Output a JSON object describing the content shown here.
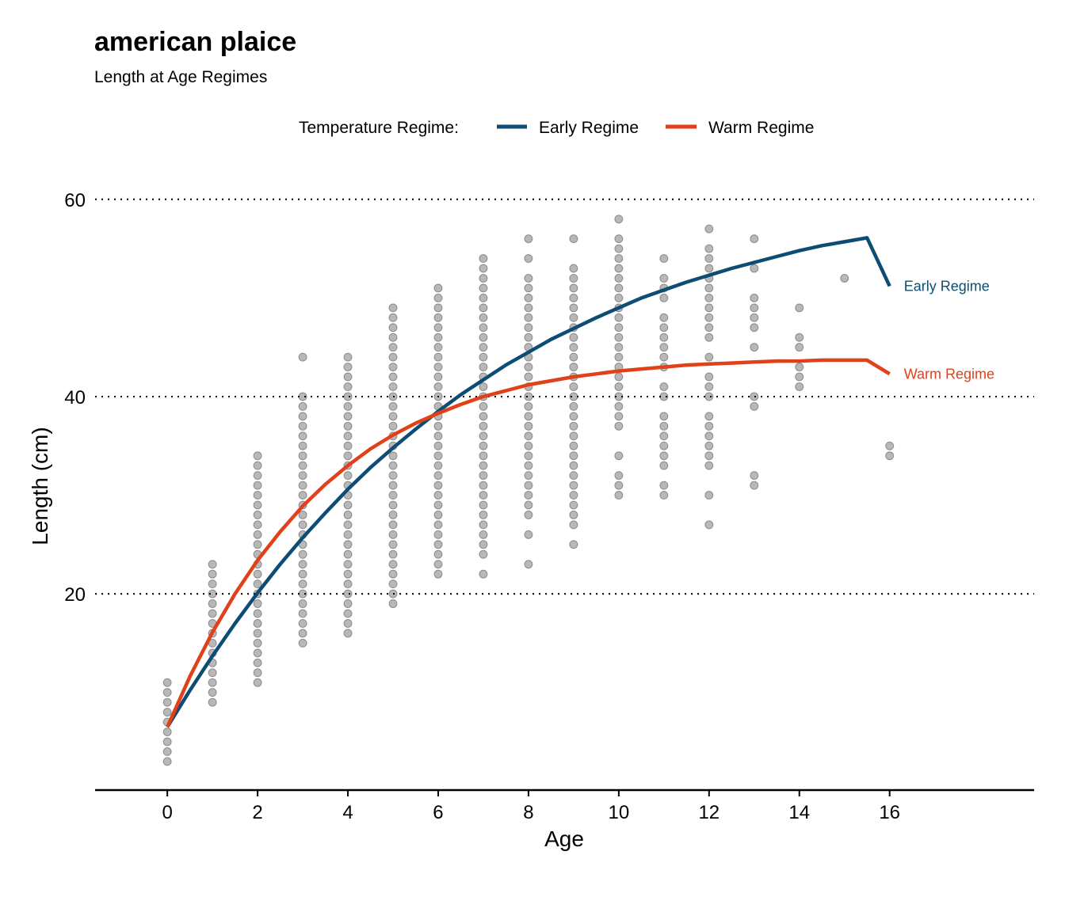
{
  "chart_data": {
    "type": "scatter",
    "title": "american plaice",
    "subtitle": "Length at Age Regimes",
    "xlabel": "Age",
    "ylabel": "Length (cm)",
    "xlim": [
      -1.6,
      19.2
    ],
    "ylim": [
      0.1,
      64.8
    ],
    "x_ticks": [
      0,
      2,
      4,
      6,
      8,
      10,
      12,
      14,
      16
    ],
    "y_ticks": [
      20,
      40,
      60
    ],
    "grid": "horizontal dotted",
    "legend": {
      "title": "Temperature Regime:",
      "placement": "top",
      "entries": [
        "Early Regime",
        "Warm Regime"
      ]
    },
    "series": [
      {
        "name": "Early Regime",
        "color": "#0d4d73",
        "end_label": "Early Regime",
        "x": [
          0,
          0.5,
          1,
          1.5,
          2,
          2.5,
          3,
          3.5,
          4,
          4.5,
          5,
          5.5,
          6,
          6.5,
          7,
          7.5,
          8,
          8.5,
          9,
          9.5,
          10,
          10.5,
          11,
          11.5,
          12,
          12.5,
          13,
          13.5,
          14,
          14.5,
          15,
          15.5,
          16
        ],
        "y": [
          6.5,
          10.2,
          13.7,
          17.0,
          20.1,
          23.0,
          25.7,
          28.2,
          30.6,
          32.8,
          34.8,
          36.7,
          38.5,
          40.2,
          41.7,
          43.2,
          44.5,
          45.8,
          46.9,
          48.0,
          49.0,
          50.0,
          50.8,
          51.6,
          52.3,
          53.0,
          53.6,
          54.2,
          54.8,
          55.3,
          55.7,
          56.1,
          51.2
        ]
      },
      {
        "name": "Warm Regime",
        "color": "#e0401a",
        "end_label": "Warm Regime",
        "x": [
          0,
          0.5,
          1,
          1.5,
          2,
          2.5,
          3,
          3.5,
          4,
          4.5,
          5,
          5.5,
          6,
          6.5,
          7,
          7.5,
          8,
          8.5,
          9,
          9.5,
          10,
          10.5,
          11,
          11.5,
          12,
          12.5,
          13,
          13.5,
          14,
          14.5,
          15,
          15.5,
          16
        ],
        "y": [
          6.5,
          11.6,
          16.1,
          20.0,
          23.4,
          26.3,
          28.9,
          31.1,
          33.0,
          34.7,
          36.1,
          37.3,
          38.3,
          39.2,
          40.0,
          40.6,
          41.2,
          41.6,
          42.0,
          42.3,
          42.6,
          42.8,
          43.0,
          43.2,
          43.3,
          43.4,
          43.5,
          43.6,
          43.6,
          43.7,
          43.7,
          43.7,
          42.3
        ]
      }
    ],
    "points": {
      "color": "#000000",
      "description": "",
      "by_age": [
        {
          "age": 0,
          "lengths": [
            3,
            4,
            5,
            6,
            7,
            8,
            9,
            10,
            11
          ]
        },
        {
          "age": 1,
          "lengths": [
            9,
            10,
            11,
            12,
            13,
            14,
            15,
            16,
            17,
            18,
            19,
            20,
            21,
            22,
            23
          ]
        },
        {
          "age": 2,
          "lengths": [
            11,
            12,
            13,
            14,
            15,
            16,
            17,
            18,
            19,
            20,
            21,
            22,
            23,
            24,
            25,
            26,
            27,
            28,
            29,
            30,
            31,
            32,
            33,
            34
          ]
        },
        {
          "age": 3,
          "lengths": [
            15,
            16,
            17,
            18,
            19,
            20,
            21,
            22,
            23,
            24,
            25,
            26,
            27,
            28,
            29,
            30,
            31,
            32,
            33,
            34,
            35,
            36,
            37,
            38,
            39,
            40,
            44
          ]
        },
        {
          "age": 4,
          "lengths": [
            16,
            17,
            18,
            19,
            20,
            21,
            22,
            23,
            24,
            25,
            26,
            27,
            28,
            29,
            30,
            31,
            32,
            33,
            34,
            35,
            36,
            37,
            38,
            39,
            40,
            41,
            42,
            43,
            44
          ]
        },
        {
          "age": 5,
          "lengths": [
            19,
            20,
            21,
            22,
            23,
            24,
            25,
            26,
            27,
            28,
            29,
            30,
            31,
            32,
            33,
            34,
            35,
            36,
            37,
            38,
            39,
            40,
            41,
            42,
            43,
            44,
            45,
            46,
            47,
            48,
            49
          ]
        },
        {
          "age": 6,
          "lengths": [
            22,
            23,
            24,
            25,
            26,
            27,
            28,
            29,
            30,
            31,
            32,
            33,
            34,
            35,
            36,
            37,
            38,
            39,
            40,
            41,
            42,
            43,
            44,
            45,
            46,
            47,
            48,
            49,
            50,
            51
          ]
        },
        {
          "age": 7,
          "lengths": [
            22,
            24,
            25,
            26,
            27,
            28,
            29,
            30,
            31,
            32,
            33,
            34,
            35,
            36,
            37,
            38,
            39,
            40,
            41,
            42,
            43,
            44,
            45,
            46,
            47,
            48,
            49,
            50,
            51,
            52,
            53,
            54
          ]
        },
        {
          "age": 8,
          "lengths": [
            23,
            26,
            28,
            29,
            30,
            31,
            32,
            33,
            34,
            35,
            36,
            37,
            38,
            39,
            40,
            41,
            42,
            43,
            44,
            45,
            46,
            47,
            48,
            49,
            50,
            51,
            52,
            54,
            56
          ]
        },
        {
          "age": 9,
          "lengths": [
            25,
            27,
            28,
            29,
            30,
            31,
            32,
            33,
            34,
            35,
            36,
            37,
            38,
            39,
            40,
            41,
            42,
            43,
            44,
            45,
            46,
            47,
            48,
            49,
            50,
            51,
            52,
            53,
            56
          ]
        },
        {
          "age": 10,
          "lengths": [
            30,
            31,
            32,
            34,
            37,
            38,
            39,
            40,
            41,
            42,
            43,
            44,
            45,
            46,
            47,
            48,
            49,
            50,
            51,
            52,
            53,
            54,
            55,
            56,
            58
          ]
        },
        {
          "age": 11,
          "lengths": [
            30,
            31,
            33,
            34,
            35,
            36,
            37,
            38,
            40,
            41,
            43,
            44,
            45,
            46,
            47,
            48,
            50,
            51,
            52,
            54
          ]
        },
        {
          "age": 12,
          "lengths": [
            27,
            30,
            33,
            34,
            35,
            36,
            37,
            38,
            40,
            41,
            42,
            44,
            46,
            47,
            48,
            49,
            50,
            51,
            52,
            53,
            54,
            55,
            57
          ]
        },
        {
          "age": 13,
          "lengths": [
            31,
            32,
            39,
            40,
            45,
            47,
            48,
            49,
            50,
            53,
            56
          ]
        },
        {
          "age": 14,
          "lengths": [
            41,
            42,
            43,
            45,
            46,
            49
          ]
        },
        {
          "age": 15,
          "lengths": [
            52
          ]
        },
        {
          "age": 16,
          "lengths": [
            34,
            35
          ]
        }
      ]
    }
  }
}
